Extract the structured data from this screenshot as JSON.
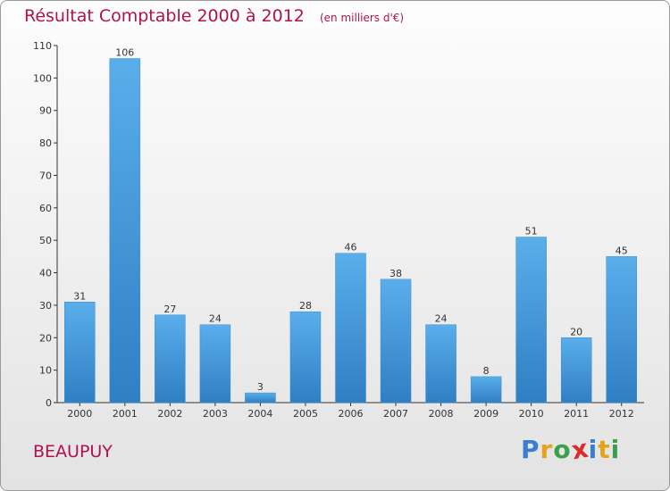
{
  "header": {
    "title": "Résultat Comptable 2000 à 2012",
    "subtitle": "(en milliers d'€)"
  },
  "footer": {
    "commune": "BEAUPUY",
    "logo_text": "Proxiti",
    "logo_letters": [
      "P",
      "r",
      "o",
      "x",
      "i",
      "t",
      "i"
    ],
    "logo_colors": [
      "#3a7fcf",
      "#e5a21c",
      "#3aa04a",
      "#d62e2e",
      "#3a7fcf",
      "#e5a21c",
      "#3aa04a"
    ]
  },
  "chart_data": {
    "type": "bar",
    "title": "Résultat Comptable 2000 à 2012",
    "subtitle": "(en milliers d'€)",
    "xlabel": "",
    "ylabel": "",
    "categories": [
      "2000",
      "2001",
      "2002",
      "2003",
      "2004",
      "2005",
      "2006",
      "2007",
      "2008",
      "2009",
      "2010",
      "2011",
      "2012"
    ],
    "values": [
      31,
      106,
      27,
      24,
      3,
      28,
      46,
      38,
      24,
      8,
      51,
      20,
      45
    ],
    "ylim": [
      0,
      110
    ],
    "yticks": [
      0,
      10,
      20,
      30,
      40,
      50,
      60,
      70,
      80,
      90,
      100,
      110
    ],
    "grid": false,
    "bar_color": "#4f9fe0"
  }
}
